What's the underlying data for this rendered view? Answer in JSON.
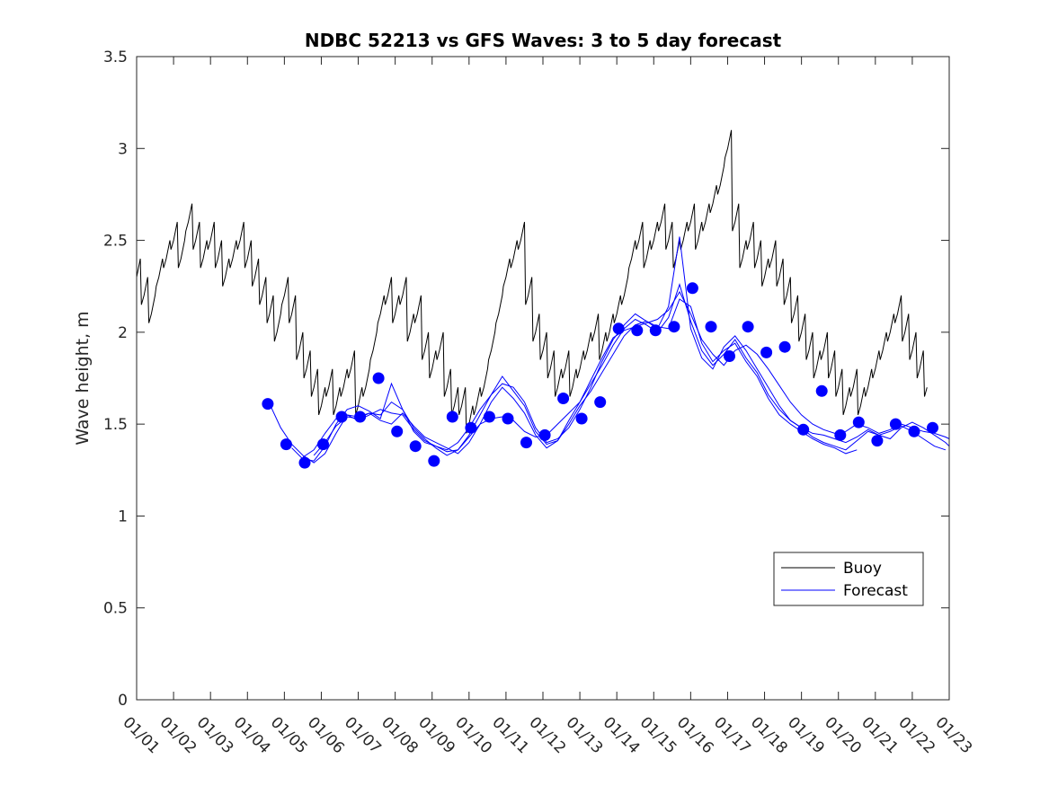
{
  "chart_data": {
    "type": "line",
    "title": "NDBC 52213 vs GFS Waves: 3 to 5 day forecast",
    "xlabel": "",
    "ylabel": "Wave height, m",
    "xlim": [
      0,
      22
    ],
    "ylim": [
      0,
      3.5
    ],
    "yticks": [
      0,
      0.5,
      1,
      1.5,
      2,
      2.5,
      3,
      3.5
    ],
    "ytick_labels": [
      "0",
      "0.5",
      "1",
      "1.5",
      "2",
      "2.5",
      "3",
      "3.5"
    ],
    "xtick_labels": [
      "01/01",
      "01/02",
      "01/03",
      "01/04",
      "01/05",
      "01/06",
      "01/07",
      "01/08",
      "01/09",
      "01/10",
      "01/11",
      "01/12",
      "01/13",
      "01/14",
      "01/15",
      "01/16",
      "01/17",
      "01/18",
      "01/19",
      "01/20",
      "01/21",
      "01/22",
      "01/23"
    ],
    "legend": {
      "position": "lower-right",
      "entries": [
        "Buoy",
        "Forecast"
      ]
    },
    "colors": {
      "buoy": "#000000",
      "forecast": "#0000ff"
    },
    "buoy": {
      "name": "Buoy",
      "x": [
        0,
        0.2,
        0.4,
        0.6,
        0.8,
        1.0,
        1.2,
        1.4,
        1.6,
        1.8,
        2.0,
        2.2,
        2.4,
        2.6,
        2.8,
        3.0,
        3.2,
        3.4,
        3.6,
        3.8,
        4.0,
        4.2,
        4.4,
        4.6,
        4.8,
        5.0,
        5.2,
        5.4,
        5.6,
        5.8,
        6.0,
        6.2,
        6.4,
        6.6,
        6.8,
        7.0,
        7.2,
        7.4,
        7.6,
        7.8,
        8.0,
        8.2,
        8.4,
        8.6,
        8.8,
        9.0,
        9.2,
        9.4,
        9.6,
        9.8,
        10.0,
        10.2,
        10.4,
        10.6,
        10.8,
        11.0,
        11.2,
        11.4,
        11.6,
        11.8,
        12.0,
        12.2,
        12.4,
        12.6,
        12.8,
        13.0,
        13.2,
        13.4,
        13.6,
        13.8,
        14.0,
        14.2,
        14.4,
        14.6,
        14.8,
        15.0,
        15.2,
        15.4,
        15.6,
        15.8,
        16.0,
        16.2,
        16.4,
        16.6,
        16.8,
        17.0,
        17.2,
        17.4,
        17.6,
        17.8,
        18.0,
        18.2,
        18.4,
        18.6,
        18.8,
        19.0,
        19.2,
        19.4,
        19.6,
        19.8,
        20.0,
        20.2,
        20.4,
        20.6,
        20.8,
        21.0,
        21.2,
        21.4
      ],
      "y": [
        2.3,
        2.2,
        2.1,
        2.3,
        2.4,
        2.5,
        2.4,
        2.6,
        2.5,
        2.4,
        2.5,
        2.4,
        2.3,
        2.4,
        2.5,
        2.4,
        2.3,
        2.2,
        2.1,
        2.0,
        2.2,
        2.1,
        1.9,
        1.8,
        1.7,
        1.6,
        1.7,
        1.6,
        1.7,
        1.8,
        1.6,
        1.7,
        1.9,
        2.1,
        2.2,
        2.1,
        2.2,
        2.0,
        2.1,
        1.9,
        1.8,
        1.9,
        1.7,
        1.6,
        1.6,
        1.5,
        1.6,
        1.7,
        1.9,
        2.1,
        2.3,
        2.4,
        2.5,
        2.2,
        2.0,
        1.9,
        1.8,
        1.7,
        1.8,
        1.7,
        1.8,
        1.9,
        2.0,
        1.9,
        2.0,
        2.1,
        2.2,
        2.4,
        2.5,
        2.4,
        2.5,
        2.6,
        2.5,
        2.4,
        2.5,
        2.6,
        2.5,
        2.6,
        2.7,
        2.8,
        3.0,
        2.6,
        2.4,
        2.5,
        2.4,
        2.3,
        2.4,
        2.3,
        2.2,
        2.1,
        2.0,
        1.9,
        1.8,
        1.9,
        1.8,
        1.7,
        1.6,
        1.7,
        1.6,
        1.7,
        1.8,
        1.9,
        2.0,
        2.1,
        2.0,
        1.9,
        1.8,
        1.7
      ]
    },
    "forecast_series": [
      {
        "name": "Forecast",
        "x": [
          3.6,
          3.9,
          4.2,
          4.5,
          4.8,
          5.1,
          5.4,
          5.7,
          6.0,
          6.3,
          6.6,
          6.9,
          7.2,
          7.5,
          7.8,
          8.1,
          8.4,
          8.7,
          9.0,
          9.3,
          9.6,
          9.9,
          10.2,
          10.5,
          10.8,
          11.1,
          11.4,
          11.7,
          12.0,
          12.3,
          12.6,
          12.9,
          13.2,
          13.5,
          13.8,
          14.1,
          14.4,
          14.7,
          15.0,
          15.3,
          15.6,
          15.9,
          16.2,
          16.5,
          16.8,
          17.1,
          17.4,
          17.7,
          18.0,
          18.3,
          18.6,
          18.9,
          19.2,
          19.5,
          19.8,
          20.1,
          20.4,
          20.7,
          21.0,
          21.3,
          21.6,
          21.9,
          22.0
        ],
        "y": [
          1.61,
          1.48,
          1.39,
          1.33,
          1.29,
          1.34,
          1.45,
          1.55,
          1.54,
          1.56,
          1.55,
          1.62,
          1.58,
          1.48,
          1.42,
          1.37,
          1.33,
          1.36,
          1.43,
          1.5,
          1.53,
          1.54,
          1.52,
          1.46,
          1.43,
          1.44,
          1.5,
          1.56,
          1.62,
          1.74,
          1.86,
          1.97,
          2.01,
          2.03,
          2.05,
          2.07,
          2.12,
          2.22,
          2.1,
          1.96,
          1.88,
          1.82,
          1.9,
          1.93,
          1.88,
          1.8,
          1.71,
          1.62,
          1.55,
          1.5,
          1.47,
          1.45,
          1.46,
          1.5,
          1.48,
          1.45,
          1.47,
          1.5,
          1.48,
          1.46,
          1.45,
          1.43,
          1.42
        ]
      },
      {
        "name": "Forecast",
        "x": [
          4.2,
          4.5,
          4.8,
          5.1,
          5.4,
          5.7,
          6.0,
          6.3,
          6.6,
          6.9,
          7.2,
          7.5,
          7.8,
          8.1,
          8.4,
          8.7,
          9.0,
          9.3,
          9.6,
          9.9,
          10.2,
          10.5,
          10.8,
          11.1,
          11.4,
          11.7,
          12.0,
          12.3,
          12.6,
          12.9,
          13.2,
          13.5,
          13.8,
          14.1,
          14.4,
          14.7,
          15.0,
          15.3,
          15.6,
          15.9,
          16.2,
          16.5,
          16.8,
          17.1,
          17.4,
          17.7,
          18.0,
          18.3,
          18.6,
          18.9,
          19.2,
          19.5,
          19.8,
          20.1,
          20.4,
          20.7,
          21.0,
          21.3,
          21.6,
          21.9,
          22.0
        ],
        "y": [
          1.37,
          1.31,
          1.3,
          1.38,
          1.5,
          1.58,
          1.6,
          1.57,
          1.53,
          1.72,
          1.58,
          1.46,
          1.4,
          1.38,
          1.36,
          1.4,
          1.48,
          1.58,
          1.66,
          1.72,
          1.7,
          1.62,
          1.48,
          1.4,
          1.42,
          1.48,
          1.58,
          1.7,
          1.84,
          1.96,
          2.04,
          2.1,
          2.06,
          2.02,
          2.14,
          2.52,
          2.02,
          1.86,
          1.8,
          1.92,
          1.98,
          1.9,
          1.8,
          1.7,
          1.6,
          1.52,
          1.48,
          1.45,
          1.44,
          1.42,
          1.4,
          1.43,
          1.47,
          1.44,
          1.42,
          1.48,
          1.51,
          1.48,
          1.44,
          1.4,
          1.38
        ]
      },
      {
        "name": "Forecast",
        "x": [
          4.5,
          4.8,
          5.1,
          5.4,
          5.7,
          6.0,
          6.3,
          6.6,
          6.9,
          7.2,
          7.5,
          7.8,
          8.1,
          8.4,
          8.7,
          9.0,
          9.3,
          9.6,
          9.9,
          10.2,
          10.5,
          10.8,
          11.1,
          11.4,
          11.7,
          12.0,
          12.3,
          12.6,
          12.9,
          13.2,
          13.5,
          13.8,
          14.1,
          14.4,
          14.7,
          15.0,
          15.3,
          15.6,
          15.9,
          16.2,
          16.5,
          16.8,
          17.1,
          17.4,
          17.7,
          18.0,
          18.3,
          18.6,
          18.9,
          19.2,
          19.5,
          19.8,
          20.1,
          20.4,
          20.7,
          21.0,
          21.3,
          21.6,
          21.9
        ],
        "y": [
          1.32,
          1.36,
          1.45,
          1.53,
          1.55,
          1.52,
          1.55,
          1.58,
          1.56,
          1.55,
          1.47,
          1.41,
          1.38,
          1.35,
          1.36,
          1.44,
          1.55,
          1.66,
          1.76,
          1.68,
          1.6,
          1.46,
          1.39,
          1.41,
          1.52,
          1.62,
          1.72,
          1.82,
          1.93,
          2.02,
          2.07,
          2.04,
          2.0,
          2.08,
          2.26,
          2.06,
          1.9,
          1.82,
          1.88,
          1.96,
          1.86,
          1.78,
          1.66,
          1.58,
          1.52,
          1.48,
          1.43,
          1.4,
          1.38,
          1.36,
          1.41,
          1.46,
          1.44,
          1.46,
          1.49,
          1.46,
          1.42,
          1.38,
          1.36
        ]
      },
      {
        "name": "Forecast",
        "x": [
          4.8,
          5.1,
          5.4,
          5.7,
          6.0,
          6.3,
          6.6,
          6.9,
          7.2,
          7.5,
          7.8,
          8.1,
          8.4,
          8.7,
          9.0,
          9.3,
          9.6,
          9.9,
          10.2,
          10.5,
          10.8,
          11.1,
          11.4,
          11.7,
          12.0,
          12.3,
          12.6,
          12.9,
          13.2,
          13.5,
          13.8,
          14.1,
          14.4,
          14.7,
          15.0,
          15.3,
          15.6,
          15.9,
          16.2,
          16.5,
          16.8,
          17.1,
          17.4,
          17.7,
          18.0,
          18.3,
          18.6,
          18.9,
          19.2,
          19.5
        ],
        "y": [
          1.33,
          1.4,
          1.49,
          1.54,
          1.53,
          1.56,
          1.52,
          1.5,
          1.56,
          1.49,
          1.43,
          1.4,
          1.37,
          1.34,
          1.4,
          1.5,
          1.62,
          1.7,
          1.64,
          1.56,
          1.44,
          1.37,
          1.41,
          1.5,
          1.6,
          1.68,
          1.78,
          1.88,
          1.98,
          2.04,
          2.06,
          2.03,
          2.02,
          2.18,
          2.14,
          1.94,
          1.84,
          1.9,
          1.94,
          1.84,
          1.76,
          1.64,
          1.55,
          1.5,
          1.46,
          1.42,
          1.39,
          1.37,
          1.34,
          1.36
        ]
      }
    ],
    "markers": {
      "name": "Forecast",
      "x": [
        3.55,
        4.05,
        4.55,
        5.05,
        5.55,
        6.05,
        6.55,
        7.05,
        7.55,
        8.05,
        8.55,
        9.05,
        9.55,
        10.05,
        10.55,
        11.05,
        11.55,
        12.05,
        12.55,
        13.05,
        13.55,
        14.05,
        14.55,
        15.05,
        15.55,
        16.05,
        16.55,
        17.05,
        17.55,
        18.05,
        18.55,
        19.05,
        19.55,
        20.05,
        20.55,
        21.05,
        21.55
      ],
      "y": [
        1.61,
        1.39,
        1.29,
        1.39,
        1.54,
        1.54,
        1.75,
        1.46,
        1.38,
        1.3,
        1.54,
        1.48,
        1.54,
        1.53,
        1.4,
        1.44,
        1.64,
        1.53,
        1.62,
        2.02,
        2.01,
        2.01,
        2.03,
        2.24,
        2.03,
        1.87,
        2.03,
        1.89,
        1.92,
        1.47,
        1.68,
        1.44,
        1.51,
        1.41,
        1.5,
        1.46,
        1.48
      ]
    }
  }
}
